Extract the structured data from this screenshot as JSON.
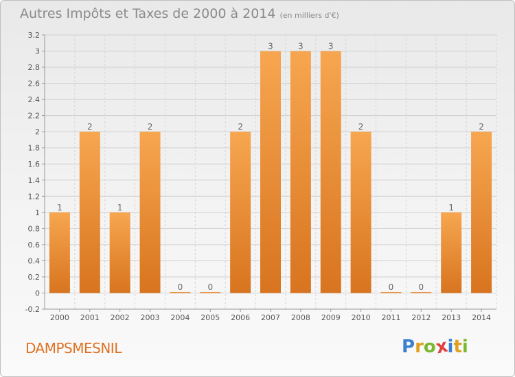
{
  "title": "Autres Impôts et Taxes de 2000 à 2014",
  "title_unit": "(en milliers d'€)",
  "commune": "DAMPSMESNIL",
  "logo": {
    "letters": [
      "P",
      "r",
      "o",
      "x",
      "i",
      "t",
      "i"
    ],
    "colors": [
      "#3a7fd0",
      "#e0a020",
      "#7ab830",
      "#e04040",
      "#3a7fd0",
      "#e0a020",
      "#7ab830"
    ]
  },
  "colors": {
    "bar_light": "#f7a650",
    "bar_dark": "#d8741f",
    "text": "#8a8a8a",
    "commune": "#e07020"
  },
  "chart_data": {
    "type": "bar",
    "title": "Autres Impôts et Taxes de 2000 à 2014",
    "categories": [
      "2000",
      "2001",
      "2002",
      "2003",
      "2004",
      "2005",
      "2006",
      "2007",
      "2008",
      "2009",
      "2010",
      "2011",
      "2012",
      "2013",
      "2014"
    ],
    "values": [
      1,
      2,
      1,
      2,
      0,
      0,
      2,
      3,
      3,
      3,
      2,
      0,
      0,
      1,
      2
    ],
    "data_labels": [
      "1",
      "2",
      "1",
      "2",
      "0",
      "0",
      "2",
      "3",
      "3",
      "3",
      "2",
      "0",
      "0",
      "1",
      "2"
    ],
    "ylim": [
      -0.2,
      3.2
    ],
    "yticks": [
      -0.2,
      0,
      0.2,
      0.4,
      0.6,
      0.8,
      1,
      1.2,
      1.4,
      1.6,
      1.8,
      2,
      2.2,
      2.4,
      2.6,
      2.8,
      3,
      3.2
    ],
    "ytick_labels": [
      "-0.2",
      "0",
      "0.2",
      "0.4",
      "0.6",
      "0.8",
      "1",
      "1.2",
      "1.4",
      "1.6",
      "1.8",
      "2",
      "2.2",
      "2.4",
      "2.6",
      "2.8",
      "3",
      "3.2"
    ],
    "grid": true,
    "xlabel": "",
    "ylabel": ""
  }
}
